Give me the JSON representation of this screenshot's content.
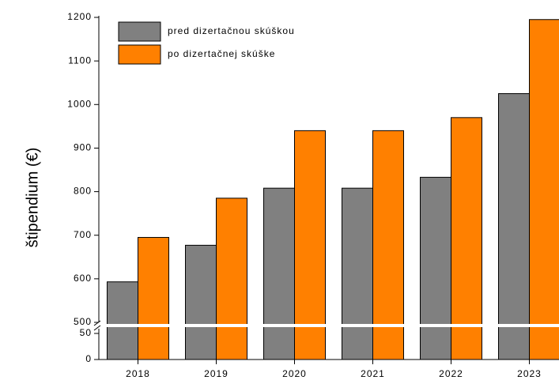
{
  "chart_data": {
    "type": "bar",
    "y_axis_label": "štipendium (€)",
    "categories": [
      "2018",
      "2019",
      "2020",
      "2021",
      "2022",
      "2023"
    ],
    "series": [
      {
        "name": "pred dizertačnou skúškou",
        "color": "#808080",
        "values": [
          593,
          677,
          808,
          808,
          833,
          1025
        ]
      },
      {
        "name": "po dizertačnej skúške",
        "color": "#ff8000",
        "values": [
          695,
          785,
          940,
          940,
          970,
          1195
        ]
      }
    ],
    "ylim": [
      0,
      1200
    ],
    "axis_break": [
      50,
      500
    ],
    "yticks": [
      0,
      50,
      500,
      600,
      700,
      800,
      900,
      1000,
      1100,
      1200
    ],
    "legend": "upper left"
  }
}
